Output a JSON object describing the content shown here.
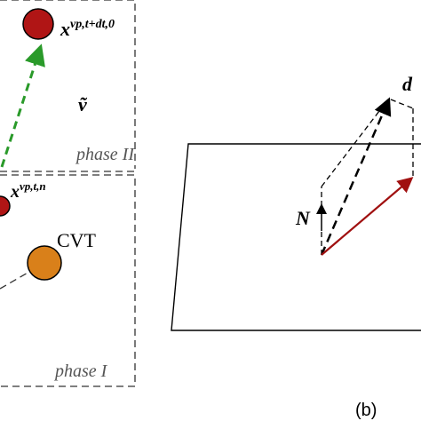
{
  "left_panel": {
    "labels": {
      "x_new": "x",
      "x_new_sup": "vp,t+dt,0",
      "velocity": "ṽ",
      "phase_2": "phase II",
      "x_old": "x",
      "x_old_sup": "vp,t,n",
      "cvt": "CVT",
      "phase_1": "phase I"
    }
  },
  "right_panel": {
    "labels": {
      "normal": "N",
      "top": "d",
      "caption": "(b)"
    }
  }
}
